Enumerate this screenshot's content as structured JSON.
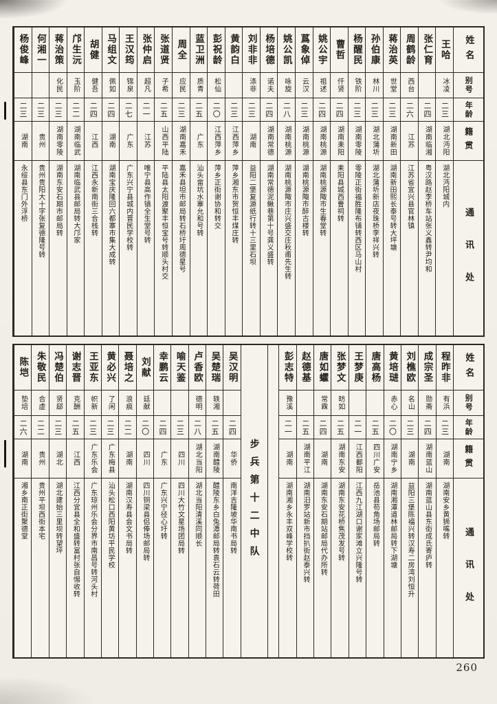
{
  "page": {
    "number": "260"
  },
  "column_headers": {
    "name": "姓名",
    "alias": "别号",
    "age": "年龄",
    "native_place": "籍贯",
    "address": "通讯处"
  },
  "tables": [
    {
      "id": "roster-table-top",
      "persons": [
        {
          "name": "王哈",
          "alias": "冰凌",
          "age": "二三",
          "native": "湖北沔阳",
          "address": "湖北沔阳城内"
        },
        {
          "name": "张仁育",
          "alias": "",
          "age": "二四",
          "native": "湖南临湘",
          "address": "粤汉路赵李桥车站张义鑫转尹均和"
        },
        {
          "name": "周鹤龄",
          "alias": "西台",
          "age": "二六",
          "native": "江苏",
          "address": "江苏省宜兴县官林镇"
        },
        {
          "name": "蒋治英",
          "alias": "世堂",
          "age": "二三",
          "native": "湖南新田",
          "address": "湖南新田熙长泰号转大坪塘"
        },
        {
          "name": "孙伯康",
          "alias": "林川",
          "age": "二三",
          "native": "湖北蒲圻",
          "address": "湖北蒲圻新店夜珠桥李祥兴转"
        },
        {
          "name": "杨醒民",
          "alias": "铁阶",
          "age": "二三",
          "native": "湖南零陵",
          "address": "零陵正街福胜隆布铺转西区马山村"
        },
        {
          "name": "曹哲",
          "alias": "仟贤",
          "age": "二四",
          "native": "湖南耒阳",
          "address": "耒阳县城西曹祠转"
        },
        {
          "name": "姚公宇",
          "alias": "祖述",
          "age": "二四",
          "native": "湖南桃源",
          "address": "湖南桃源陬市生春堂转"
        },
        {
          "name": "蔿象倬",
          "alias": "云汉",
          "age": "二三",
          "native": "湖南桃源",
          "address": "湖南桃源陬市醉古楼转"
        },
        {
          "name": "姚公凯",
          "alias": "咏旋",
          "age": "二八",
          "native": "湖南桃源",
          "address": "湖南桃源陬市庄兴盛交庄秋甫先生转"
        },
        {
          "name": "杨培德",
          "alias": "诺夫",
          "age": "二四",
          "native": "湖南常德",
          "address": "湖南常德泥鳅巷第十号龚义盛转"
        },
        {
          "name": "刘非非",
          "alias": "涤非",
          "age": "二三",
          "native": "湖南",
          "address": "益阳二堡复源纸行转十三里石坝"
        },
        {
          "name": "黄韵白",
          "alias": "",
          "age": "二三",
          "native": "江西萍乡",
          "address": "萍乡湘东市贺恒丰煤庄转"
        },
        {
          "name": "彭祝龄",
          "alias": "松仙",
          "age": "二〇",
          "native": "江西萍乡",
          "address": "萍乡正街谢协和转交"
        },
        {
          "name": "蓝卫洲",
          "alias": "质青",
          "age": "二五",
          "native": "广东",
          "address": "汕头畲坑水寨允和号转"
        },
        {
          "name": "周全",
          "alias": "应民",
          "age": "二三",
          "native": "湖南嘉禾",
          "address": "嘉禾县坦市邮局转石桥圩周德星号"
        },
        {
          "name": "张道贤",
          "alias": "子希",
          "age": "二五",
          "native": "山西平陆",
          "address": "平陆县太阳渡聚丰恒宝号转顺头村交"
        },
        {
          "name": "张仲启",
          "alias": "超凡",
          "age": "二一",
          "native": "江苏",
          "address": "唯宁县高作镇全生堂号转"
        },
        {
          "name": "王汉筠",
          "alias": "锦泉",
          "age": "二七",
          "native": "广东",
          "address": "广东兴宁县城内晋民学校转"
        },
        {
          "name": "马组文",
          "alias": "佩如",
          "age": "二四",
          "native": "湖南",
          "address": "湖南宝庆隆回六都寨市集大成转"
        },
        {
          "name": "胡健",
          "alias": "健吾",
          "age": "二四",
          "native": "江西",
          "address": "江西永新南街三合栈转"
        },
        {
          "name": "邝生沅",
          "alias": "玉阶",
          "age": "二二",
          "native": "湖南临武",
          "address": "湖南临武县邮局转大邝家"
        },
        {
          "name": "蒋治策",
          "alias": "化民",
          "age": "二三",
          "native": "湖南零陵",
          "address": "湖南东安石期市邮局转"
        },
        {
          "name": "何湘一",
          "alias": "",
          "age": "二三",
          "native": "贵州",
          "address": "贵州贵阳大十字张复德隆号转"
        },
        {
          "name": "杨俊峰",
          "alias": "",
          "age": "二三",
          "native": "湖南",
          "address": "永绥县东门外浮桥"
        }
      ]
    },
    {
      "id": "roster-table-bottom",
      "unit_label": "步兵第十二中队",
      "unit_insert_after": 10,
      "persons": [
        {
          "name": "程昨非",
          "alias": "有浜",
          "age": "二三",
          "native": "湖南",
          "address": "湖南安乡黄狮嘴转"
        },
        {
          "name": "成宗圣",
          "alias": "勋斋",
          "age": "二四",
          "native": "湖南蓝山",
          "address": "湖南蓝山县东街成氏寄庐转"
        },
        {
          "name": "刘樵欧",
          "alias": "名山",
          "age": "二三",
          "native": "湖南",
          "address": "益阳三堡陈福兴转汉寿二房湾刘恒升"
        },
        {
          "name": "黄培琎",
          "alias": "赤心",
          "age": "二〇",
          "native": "湖南宁乡",
          "address": "湖南湘潭道林邮局转下湖塘"
        },
        {
          "name": "唐高杨",
          "alias": "",
          "age": "二五",
          "native": "四川广安",
          "address": "岳池县苟角场邮局转"
        },
        {
          "name": "王梦庚",
          "alias": "",
          "age": "二一",
          "native": "江西鄱阳",
          "address": "江西九江湖口谢家滩立兴隆号转"
        },
        {
          "name": "张梦文",
          "alias": "昉如",
          "age": "二五",
          "native": "湖南东安",
          "address": "湖南东安花桥焦茂发号转"
        },
        {
          "name": "唐如蠷",
          "alias": "常霖",
          "age": "二四",
          "native": "湖南",
          "address": "湖南东安石期站邮局代办所转"
        },
        {
          "name": "赵德基",
          "alias": "",
          "age": "二五",
          "native": "湖南平江",
          "address": "湖南汨罗站新市挡扒街赵泰兴转"
        },
        {
          "name": "彭志特",
          "alias": "豫溪",
          "age": "二一",
          "native": "湖南",
          "address": "湖南湘乡永丰双峰学校转"
        },
        {
          "name": "吴汉明",
          "alias": "",
          "age": "二四",
          "native": "华侨",
          "address": "南洋吉隆坡华南书局转"
        },
        {
          "name": "吴楚瑞",
          "alias": "轶湘",
          "age": "二五",
          "native": "湖南醴陵",
          "address": "醴陵东乡白兔潭邮局转袁石云转荷田"
        },
        {
          "name": "卢香欧",
          "alias": "德明",
          "age": "二八",
          "native": "湖北当阳",
          "address": "湖北当阳清溪同顺长"
        },
        {
          "name": "喻天鉴",
          "alias": "",
          "age": "二三",
          "native": "四川",
          "address": "四川大竹文星场团局转"
        },
        {
          "name": "幸鹏云",
          "alias": "",
          "age": "二四",
          "native": "广东",
          "address": "广东兴宁径心圩转"
        },
        {
          "name": "刘献",
          "alias": "廷献",
          "age": "二〇",
          "native": "四川",
          "address": "四川铜梁县侣俸场邮局转"
        },
        {
          "name": "聂培之",
          "alias": "浪痕",
          "age": "二二",
          "native": "湖南",
          "address": "湖南汉寿县会文书局转"
        },
        {
          "name": "黄必兴",
          "alias": "了闲",
          "age": "二三",
          "native": "广东梅县",
          "address": "汕头松口西阳黄坊平民学校"
        },
        {
          "name": "王亚东",
          "alias": "帜新",
          "age": "二三",
          "native": "广东乐会",
          "address": "广东琼州乐会分界市南昌号转河头村"
        },
        {
          "name": "谢志晋",
          "alias": "克酬",
          "age": "二五",
          "native": "江西",
          "address": "江西分宜县全和盛转富村张自惕收转"
        },
        {
          "name": "冯楚伯",
          "alias": "贤郈",
          "age": "二三",
          "native": "湖北",
          "address": "湖北建始三里坝转望坪"
        },
        {
          "name": "朱敬民",
          "alias": "合虚",
          "age": "二二",
          "native": "贵州",
          "address": "贵州平坝西街本宅"
        },
        {
          "name": "陈垲",
          "alias": "垫培",
          "age": "二六",
          "native": "湖南",
          "address": "湘乡南正街聚德堂"
        }
      ]
    }
  ]
}
